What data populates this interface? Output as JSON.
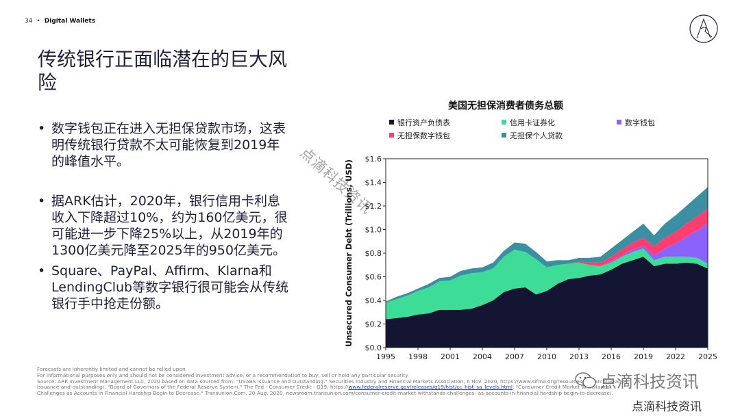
{
  "header": {
    "page_number": "34",
    "section": "Digital Wallets"
  },
  "title": "传统银行正面临潜在的巨大风险",
  "bullets": [
    "数字钱包正在进入无担保贷款市场，这表明传统银行贷款不太可能恢复到2019年的峰值水平。",
    "据ARK估计，2020年，银行信用卡利息收入下降超过10%，约为160亿美元，很可能进一步下降25%以上，从2019年的1300亿美元降至2025年的950亿美元。",
    "Square、PayPal、Affirm、Klarna和LendingClub等数字银行很可能会从传统银行手中抢走份额。"
  ],
  "chart_data": {
    "type": "area",
    "stacked": true,
    "title": "美国无担保消费者债务总额",
    "ylabel": "Unsecured Consumer Debt (Trillions, USD)",
    "xlabel": "",
    "ylim": [
      0,
      1.6
    ],
    "xlim": [
      1995,
      2025
    ],
    "y_ticks": [
      "$0.0",
      "$0.2",
      "$0.4",
      "$0.6",
      "$0.8",
      "$1.0",
      "$1.2",
      "$1.4",
      "$1.6"
    ],
    "x_ticks": [
      "1995",
      "1998",
      "2001",
      "2004",
      "2007",
      "2010",
      "2013",
      "2016",
      "2019",
      "2022",
      "2025"
    ],
    "legend": [
      "银行资产负债表",
      "信用卡证券化",
      "数字钱包",
      "无担保数字钱包",
      "无担保个人贷款"
    ],
    "x": [
      1995,
      1996,
      1997,
      1998,
      1999,
      2000,
      2001,
      2002,
      2003,
      2004,
      2005,
      2006,
      2007,
      2008,
      2009,
      2010,
      2011,
      2012,
      2013,
      2014,
      2015,
      2016,
      2017,
      2018,
      2019,
      2020,
      2021,
      2022,
      2023,
      2024,
      2025
    ],
    "series": [
      {
        "name": "银行资产负债表",
        "color": "#141433",
        "values": [
          0.24,
          0.25,
          0.26,
          0.28,
          0.29,
          0.32,
          0.32,
          0.32,
          0.33,
          0.36,
          0.4,
          0.47,
          0.5,
          0.51,
          0.45,
          0.48,
          0.54,
          0.58,
          0.59,
          0.61,
          0.62,
          0.66,
          0.71,
          0.74,
          0.77,
          0.69,
          0.71,
          0.71,
          0.72,
          0.71,
          0.67
        ]
      },
      {
        "name": "信用卡证券化",
        "color": "#3ddc97",
        "values": [
          0.14,
          0.16,
          0.18,
          0.2,
          0.22,
          0.24,
          0.25,
          0.29,
          0.3,
          0.28,
          0.27,
          0.3,
          0.33,
          0.3,
          0.3,
          0.2,
          0.16,
          0.13,
          0.13,
          0.09,
          0.07,
          0.06,
          0.06,
          0.07,
          0.07,
          0.05,
          0.06,
          0.06,
          0.05,
          0.05,
          0.04
        ]
      },
      {
        "name": "数字钱包",
        "color": "#8a63ff",
        "values": [
          0,
          0,
          0,
          0,
          0,
          0,
          0,
          0,
          0,
          0,
          0,
          0,
          0,
          0,
          0,
          0,
          0,
          0,
          0,
          0,
          0,
          0.01,
          0.01,
          0.02,
          0.02,
          0.04,
          0.07,
          0.11,
          0.17,
          0.23,
          0.34
        ]
      },
      {
        "name": "无担保数字钱包",
        "color": "#ff3d6e",
        "values": [
          0,
          0,
          0,
          0,
          0,
          0,
          0,
          0,
          0,
          0,
          0,
          0,
          0,
          0,
          0,
          0,
          0,
          0,
          0.01,
          0.02,
          0.03,
          0.04,
          0.05,
          0.06,
          0.07,
          0.08,
          0.09,
          0.1,
          0.11,
          0.12,
          0.13
        ]
      },
      {
        "name": "无担保个人贷款",
        "color": "#3a8fa3",
        "values": [
          0.01,
          0.02,
          0.02,
          0.02,
          0.03,
          0.03,
          0.03,
          0.04,
          0.04,
          0.04,
          0.05,
          0.05,
          0.06,
          0.07,
          0.06,
          0.05,
          0.04,
          0.03,
          0.03,
          0.04,
          0.05,
          0.07,
          0.08,
          0.09,
          0.12,
          0.09,
          0.12,
          0.14,
          0.15,
          0.17,
          0.18
        ]
      }
    ]
  },
  "footnote": {
    "line1": "Forecasts are inherently limited and cannot be relied upon.",
    "line2": "For informational purposes only and should not be considered investment advice, or a recommendation to buy, sell or hold any particular security.",
    "line3a": "Source: ARK Investment Management LLC, 2020 based on data sourced from: \"USABS Issuance and Outstanding.\" Securities Industry and Financial Markets Association, 6 Nov. 2020, https://www.sifma.org/resources/research/us-abs-",
    "line3b": "issuance-and-outstanding/; \"Board of Governors of the Federal Reserve System.\" The Fed - Consumer Credit - G19, https://",
    "link": "www.federalreserve.gov/releases/g19/hist/cc_hist_sa_levels.html",
    "line3c": "; \"Consumer Credit Market Withstands",
    "line4": "Challenges as Accounts in Financial Hardship Begin to Decrease.\" Transunion.Com, 20 Aug. 2020, newsroom.transunion.com/consumer-credit-market-withstands-challenges--as-accounts-in-financial-hardship-begin-to-decrease/."
  },
  "watermark": {
    "diagonal": "点滴科技资讯",
    "wechat": "点滴科技资讯",
    "bottom": "点滴科技资讯"
  }
}
